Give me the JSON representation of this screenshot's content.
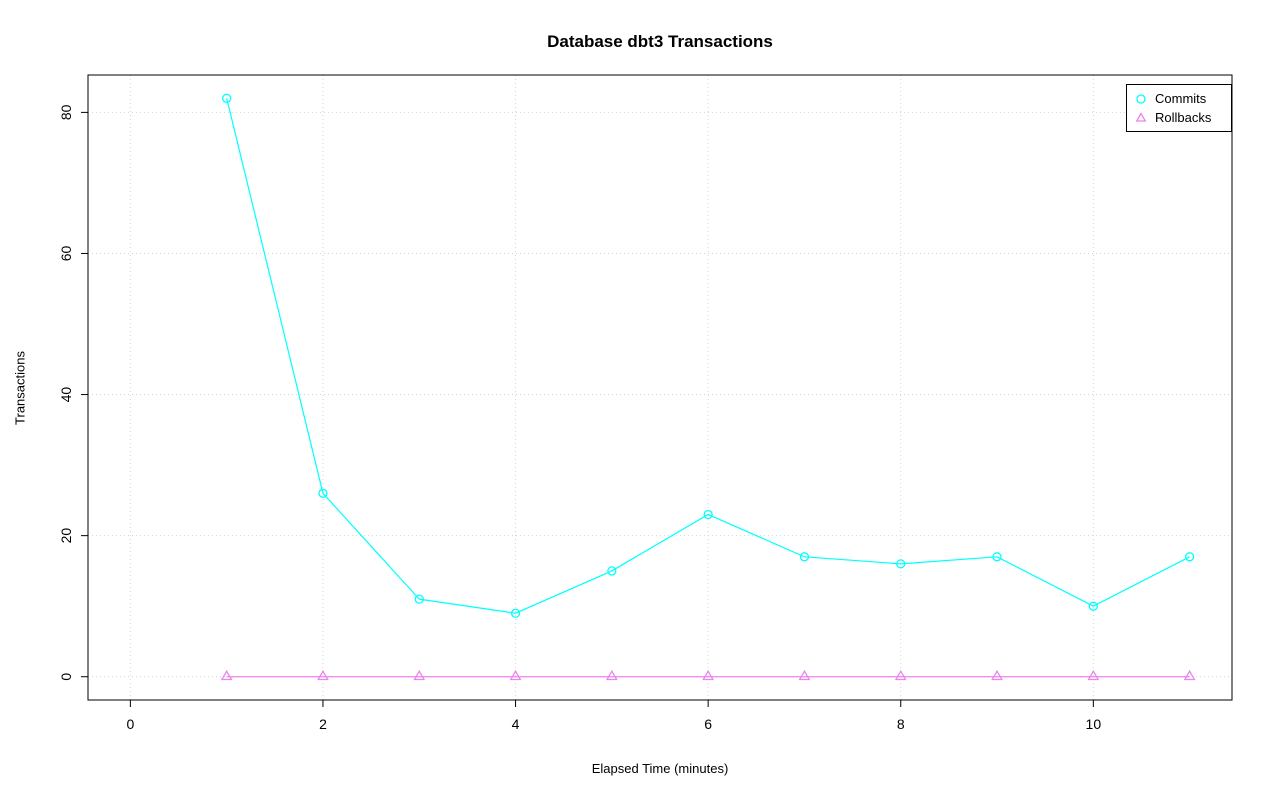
{
  "chart_data": {
    "type": "line",
    "title": "Database dbt3 Transactions",
    "xlabel": "Elapsed Time (minutes)",
    "ylabel": "Transactions",
    "x": [
      1,
      2,
      3,
      4,
      5,
      6,
      7,
      8,
      9,
      10,
      11
    ],
    "series": [
      {
        "name": "Commits",
        "color": "#00ffff",
        "marker": "circle",
        "values": [
          82,
          26,
          11,
          9,
          15,
          23,
          17,
          16,
          17,
          10,
          17
        ]
      },
      {
        "name": "Rollbacks",
        "color": "#ee82ee",
        "marker": "triangle",
        "values": [
          0,
          0,
          0,
          0,
          0,
          0,
          0,
          0,
          0,
          0,
          0
        ]
      }
    ],
    "xticks": [
      0,
      2,
      4,
      6,
      8,
      10
    ],
    "yticks": [
      0,
      20,
      40,
      60,
      80
    ],
    "xlim": [
      -0.44,
      11.44
    ],
    "ylim": [
      -3.3,
      85.3
    ],
    "grid": true,
    "grid_color": "#d3d3d3",
    "axis_color": "#000000",
    "legend_position": "top-right"
  }
}
